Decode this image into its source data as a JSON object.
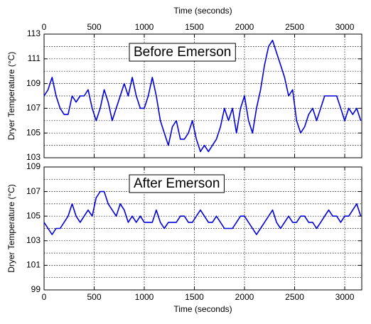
{
  "chart_data": [
    {
      "type": "line",
      "annotation": "Before Emerson",
      "xlabel": "Time (seconds)",
      "ylabel": "Dryer Temperature (°C)",
      "xaxis_position": "top",
      "xlim": [
        0,
        3170
      ],
      "xticks": [
        0,
        500,
        1000,
        1500,
        2000,
        2500,
        3000
      ],
      "ylim": [
        103,
        113
      ],
      "yticks": [
        103,
        105,
        107,
        109,
        111,
        113
      ],
      "yminor": [
        104,
        106,
        108,
        110,
        112
      ],
      "grid": true,
      "x": [
        0,
        40,
        80,
        120,
        160,
        200,
        240,
        280,
        320,
        360,
        400,
        440,
        480,
        520,
        560,
        600,
        640,
        680,
        720,
        760,
        800,
        840,
        880,
        920,
        960,
        1000,
        1040,
        1080,
        1120,
        1160,
        1200,
        1240,
        1280,
        1320,
        1360,
        1400,
        1440,
        1480,
        1520,
        1560,
        1600,
        1640,
        1680,
        1720,
        1760,
        1800,
        1840,
        1880,
        1920,
        1960,
        2000,
        2040,
        2080,
        2120,
        2160,
        2200,
        2240,
        2280,
        2320,
        2360,
        2400,
        2440,
        2480,
        2520,
        2560,
        2600,
        2640,
        2680,
        2720,
        2760,
        2800,
        2840,
        2880,
        2920,
        2960,
        3000,
        3040,
        3080,
        3120,
        3160
      ],
      "series": [
        {
          "color": "#0000dd",
          "values": [
            108,
            108.5,
            109.5,
            108,
            107,
            106.5,
            106.5,
            108,
            107.5,
            108,
            108,
            108.5,
            107,
            106,
            107,
            108.5,
            107.5,
            106,
            107,
            108,
            109,
            108,
            109.5,
            108,
            107,
            107,
            108,
            109.5,
            108,
            106,
            105,
            104,
            105.5,
            106,
            104.5,
            104.5,
            105,
            106,
            104.5,
            103.5,
            104,
            103.5,
            104,
            104.5,
            105.5,
            107,
            106,
            107,
            105,
            107,
            108,
            106,
            105,
            107,
            108.5,
            110.5,
            112,
            112.5,
            111.5,
            110.5,
            109.5,
            108,
            108.5,
            106,
            105,
            105.5,
            106.5,
            107,
            106,
            107,
            108,
            108,
            108,
            108,
            107,
            106,
            107,
            106.5,
            107,
            106
          ]
        }
      ]
    },
    {
      "type": "line",
      "annotation": "After Emerson",
      "xlabel": "Time (seconds)",
      "ylabel": "Dryer Temperature (°C)",
      "xaxis_position": "bottom",
      "xlim": [
        0,
        3170
      ],
      "xticks": [
        0,
        500,
        1000,
        1500,
        2000,
        2500,
        3000
      ],
      "ylim": [
        99,
        109
      ],
      "yticks": [
        99,
        101,
        103,
        105,
        107,
        109
      ],
      "yminor": [
        100,
        102,
        104,
        106,
        108
      ],
      "grid": true,
      "x": [
        0,
        40,
        80,
        120,
        160,
        200,
        240,
        280,
        320,
        360,
        400,
        440,
        480,
        520,
        560,
        600,
        640,
        680,
        720,
        760,
        800,
        840,
        880,
        920,
        960,
        1000,
        1040,
        1080,
        1120,
        1160,
        1200,
        1240,
        1280,
        1320,
        1360,
        1400,
        1440,
        1480,
        1520,
        1560,
        1600,
        1640,
        1680,
        1720,
        1760,
        1800,
        1840,
        1880,
        1920,
        1960,
        2000,
        2040,
        2080,
        2120,
        2160,
        2200,
        2240,
        2280,
        2320,
        2360,
        2400,
        2440,
        2480,
        2520,
        2560,
        2600,
        2640,
        2680,
        2720,
        2760,
        2800,
        2840,
        2880,
        2920,
        2960,
        3000,
        3040,
        3080,
        3120,
        3160
      ],
      "series": [
        {
          "color": "#0000dd",
          "values": [
            104.5,
            104,
            103.5,
            104,
            104,
            104.5,
            105,
            106,
            105,
            104.5,
            105,
            105.5,
            105,
            106.5,
            107,
            107,
            106,
            105.5,
            105,
            106,
            105.5,
            104.5,
            105,
            104.5,
            105,
            104.5,
            104.5,
            104.5,
            105.5,
            104.5,
            104,
            104.5,
            104.5,
            104.5,
            105,
            105,
            104.5,
            104.5,
            105,
            105.5,
            105,
            104.5,
            104.5,
            105,
            104.5,
            104,
            104,
            104,
            104.5,
            105,
            105,
            104.5,
            104,
            103.5,
            104,
            104.5,
            105,
            105.5,
            104.5,
            104,
            104.5,
            105,
            104.5,
            104.5,
            105,
            105,
            104.5,
            104.5,
            104,
            104.5,
            105,
            105.5,
            105,
            105,
            104.5,
            105,
            105,
            105.5,
            106,
            105
          ]
        }
      ]
    }
  ]
}
